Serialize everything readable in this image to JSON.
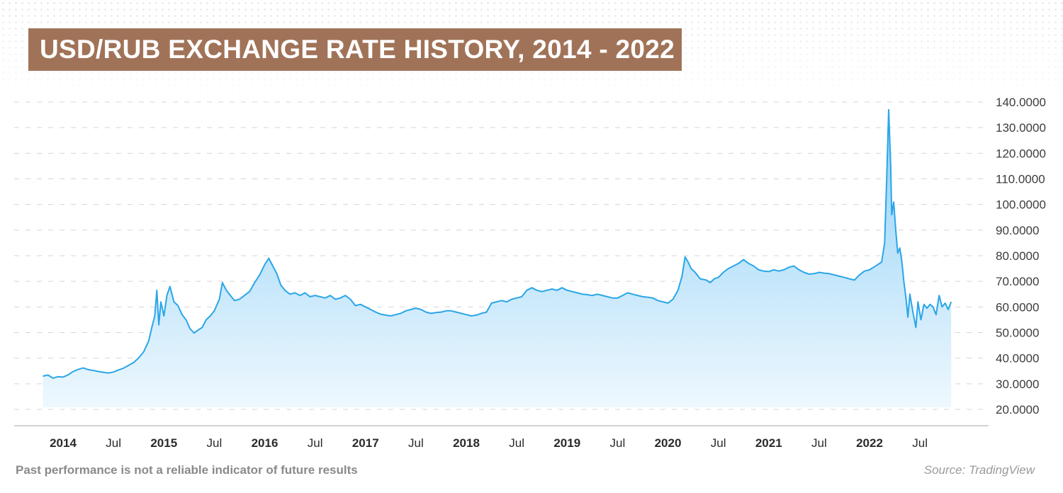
{
  "title": "USD/RUB EXCHANGE RATE HISTORY, 2014 - 2022",
  "footer": {
    "disclaimer": "Past performance is not a reliable indicator of future results",
    "source": "Source: TradingView"
  },
  "colors": {
    "line": "#2aa6e8",
    "fill_top": "#8fd0f6",
    "fill_bottom": "#eef8fe",
    "title_bg": "#a07358"
  },
  "chart_data": {
    "type": "area",
    "title": "USD/RUB EXCHANGE RATE HISTORY, 2014 - 2022",
    "ylim": [
      20,
      140
    ],
    "y_ticks": [
      "140.0000",
      "130.0000",
      "120.0000",
      "110.0000",
      "100.0000",
      "90.0000",
      "80.0000",
      "70.0000",
      "60.0000",
      "50.0000",
      "40.0000",
      "30.0000",
      "20.0000"
    ],
    "x_ticks": [
      {
        "label": "2014",
        "t": 2014.0,
        "bold": true
      },
      {
        "label": "Jul",
        "t": 2014.5,
        "bold": false
      },
      {
        "label": "2015",
        "t": 2015.0,
        "bold": true
      },
      {
        "label": "Jul",
        "t": 2015.5,
        "bold": false
      },
      {
        "label": "2016",
        "t": 2016.0,
        "bold": true
      },
      {
        "label": "Jul",
        "t": 2016.5,
        "bold": false
      },
      {
        "label": "2017",
        "t": 2017.0,
        "bold": true
      },
      {
        "label": "Jul",
        "t": 2017.5,
        "bold": false
      },
      {
        "label": "2018",
        "t": 2018.0,
        "bold": true
      },
      {
        "label": "Jul",
        "t": 2018.5,
        "bold": false
      },
      {
        "label": "2019",
        "t": 2019.0,
        "bold": true
      },
      {
        "label": "Jul",
        "t": 2019.5,
        "bold": false
      },
      {
        "label": "2020",
        "t": 2020.0,
        "bold": true
      },
      {
        "label": "Jul",
        "t": 2020.5,
        "bold": false
      },
      {
        "label": "2021",
        "t": 2021.0,
        "bold": true
      },
      {
        "label": "Jul",
        "t": 2021.5,
        "bold": false
      },
      {
        "label": "2022",
        "t": 2022.0,
        "bold": true
      },
      {
        "label": "Jul",
        "t": 2022.5,
        "bold": false
      }
    ],
    "grid": true,
    "series": [
      {
        "points": [
          [
            2013.8,
            33.0
          ],
          [
            2013.85,
            33.4
          ],
          [
            2013.9,
            32.2
          ],
          [
            2013.95,
            32.8
          ],
          [
            2014.0,
            32.6
          ],
          [
            2014.05,
            33.5
          ],
          [
            2014.1,
            34.8
          ],
          [
            2014.15,
            35.6
          ],
          [
            2014.2,
            36.2
          ],
          [
            2014.25,
            35.5
          ],
          [
            2014.3,
            35.2
          ],
          [
            2014.35,
            34.8
          ],
          [
            2014.4,
            34.5
          ],
          [
            2014.45,
            34.2
          ],
          [
            2014.5,
            34.6
          ],
          [
            2014.55,
            35.4
          ],
          [
            2014.6,
            36.1
          ],
          [
            2014.65,
            37.2
          ],
          [
            2014.7,
            38.3
          ],
          [
            2014.75,
            40.1
          ],
          [
            2014.8,
            42.5
          ],
          [
            2014.85,
            46.8
          ],
          [
            2014.88,
            52.0
          ],
          [
            2014.91,
            56.5
          ],
          [
            2014.93,
            66.5
          ],
          [
            2014.95,
            53.0
          ],
          [
            2014.97,
            62.0
          ],
          [
            2015.0,
            56.5
          ],
          [
            2015.03,
            64.5
          ],
          [
            2015.06,
            68.0
          ],
          [
            2015.1,
            62.0
          ],
          [
            2015.14,
            60.5
          ],
          [
            2015.18,
            57.0
          ],
          [
            2015.22,
            55.0
          ],
          [
            2015.26,
            51.5
          ],
          [
            2015.3,
            49.8
          ],
          [
            2015.34,
            51.0
          ],
          [
            2015.38,
            52.0
          ],
          [
            2015.42,
            55.0
          ],
          [
            2015.46,
            56.5
          ],
          [
            2015.5,
            58.5
          ],
          [
            2015.55,
            63.0
          ],
          [
            2015.58,
            69.5
          ],
          [
            2015.62,
            66.5
          ],
          [
            2015.66,
            64.5
          ],
          [
            2015.7,
            62.5
          ],
          [
            2015.75,
            63.0
          ],
          [
            2015.8,
            64.5
          ],
          [
            2015.85,
            66.0
          ],
          [
            2015.9,
            69.5
          ],
          [
            2015.95,
            72.5
          ],
          [
            2016.0,
            76.5
          ],
          [
            2016.04,
            79.0
          ],
          [
            2016.08,
            76.0
          ],
          [
            2016.12,
            73.0
          ],
          [
            2016.16,
            68.5
          ],
          [
            2016.2,
            66.5
          ],
          [
            2016.25,
            65.0
          ],
          [
            2016.3,
            65.5
          ],
          [
            2016.35,
            64.5
          ],
          [
            2016.4,
            65.5
          ],
          [
            2016.45,
            64.0
          ],
          [
            2016.5,
            64.5
          ],
          [
            2016.55,
            64.0
          ],
          [
            2016.6,
            63.5
          ],
          [
            2016.65,
            64.5
          ],
          [
            2016.7,
            63.0
          ],
          [
            2016.75,
            63.5
          ],
          [
            2016.8,
            64.5
          ],
          [
            2016.85,
            63.0
          ],
          [
            2016.9,
            60.5
          ],
          [
            2016.95,
            61.0
          ],
          [
            2017.0,
            60.0
          ],
          [
            2017.05,
            59.0
          ],
          [
            2017.1,
            58.0
          ],
          [
            2017.15,
            57.2
          ],
          [
            2017.2,
            56.8
          ],
          [
            2017.25,
            56.5
          ],
          [
            2017.3,
            57.0
          ],
          [
            2017.35,
            57.5
          ],
          [
            2017.4,
            58.5
          ],
          [
            2017.45,
            59.0
          ],
          [
            2017.5,
            59.5
          ],
          [
            2017.55,
            59.0
          ],
          [
            2017.6,
            58.0
          ],
          [
            2017.65,
            57.5
          ],
          [
            2017.7,
            57.8
          ],
          [
            2017.75,
            58.0
          ],
          [
            2017.8,
            58.5
          ],
          [
            2017.85,
            58.5
          ],
          [
            2017.9,
            58.0
          ],
          [
            2017.95,
            57.5
          ],
          [
            2018.0,
            57.0
          ],
          [
            2018.05,
            56.5
          ],
          [
            2018.1,
            56.8
          ],
          [
            2018.15,
            57.5
          ],
          [
            2018.2,
            58.0
          ],
          [
            2018.25,
            61.5
          ],
          [
            2018.3,
            62.0
          ],
          [
            2018.35,
            62.5
          ],
          [
            2018.4,
            62.0
          ],
          [
            2018.45,
            63.0
          ],
          [
            2018.5,
            63.5
          ],
          [
            2018.55,
            64.0
          ],
          [
            2018.6,
            66.5
          ],
          [
            2018.65,
            67.5
          ],
          [
            2018.7,
            66.5
          ],
          [
            2018.75,
            66.0
          ],
          [
            2018.8,
            66.5
          ],
          [
            2018.85,
            67.0
          ],
          [
            2018.9,
            66.5
          ],
          [
            2018.95,
            67.5
          ],
          [
            2019.0,
            66.5
          ],
          [
            2019.05,
            66.0
          ],
          [
            2019.1,
            65.5
          ],
          [
            2019.15,
            65.0
          ],
          [
            2019.2,
            64.8
          ],
          [
            2019.25,
            64.5
          ],
          [
            2019.3,
            65.0
          ],
          [
            2019.35,
            64.5
          ],
          [
            2019.4,
            64.0
          ],
          [
            2019.45,
            63.5
          ],
          [
            2019.5,
            63.5
          ],
          [
            2019.55,
            64.5
          ],
          [
            2019.6,
            65.5
          ],
          [
            2019.65,
            65.0
          ],
          [
            2019.7,
            64.5
          ],
          [
            2019.75,
            64.0
          ],
          [
            2019.8,
            63.8
          ],
          [
            2019.85,
            63.5
          ],
          [
            2019.9,
            62.5
          ],
          [
            2019.95,
            62.0
          ],
          [
            2020.0,
            61.5
          ],
          [
            2020.05,
            63.0
          ],
          [
            2020.1,
            66.5
          ],
          [
            2020.14,
            72.0
          ],
          [
            2020.17,
            79.5
          ],
          [
            2020.2,
            77.5
          ],
          [
            2020.23,
            75.0
          ],
          [
            2020.27,
            73.5
          ],
          [
            2020.32,
            71.0
          ],
          [
            2020.38,
            70.5
          ],
          [
            2020.42,
            69.5
          ],
          [
            2020.46,
            71.0
          ],
          [
            2020.5,
            71.5
          ],
          [
            2020.55,
            73.5
          ],
          [
            2020.6,
            75.0
          ],
          [
            2020.65,
            76.0
          ],
          [
            2020.7,
            77.0
          ],
          [
            2020.75,
            78.5
          ],
          [
            2020.8,
            77.0
          ],
          [
            2020.85,
            76.0
          ],
          [
            2020.9,
            74.5
          ],
          [
            2020.95,
            74.0
          ],
          [
            2021.0,
            73.8
          ],
          [
            2021.05,
            74.5
          ],
          [
            2021.1,
            74.0
          ],
          [
            2021.15,
            74.5
          ],
          [
            2021.2,
            75.5
          ],
          [
            2021.25,
            76.0
          ],
          [
            2021.3,
            74.5
          ],
          [
            2021.35,
            73.5
          ],
          [
            2021.4,
            72.8
          ],
          [
            2021.45,
            73.0
          ],
          [
            2021.5,
            73.5
          ],
          [
            2021.55,
            73.2
          ],
          [
            2021.6,
            73.0
          ],
          [
            2021.65,
            72.5
          ],
          [
            2021.7,
            72.0
          ],
          [
            2021.75,
            71.5
          ],
          [
            2021.8,
            71.0
          ],
          [
            2021.85,
            70.5
          ],
          [
            2021.9,
            72.5
          ],
          [
            2021.95,
            74.0
          ],
          [
            2022.0,
            74.5
          ],
          [
            2022.04,
            75.5
          ],
          [
            2022.08,
            76.5
          ],
          [
            2022.12,
            77.5
          ],
          [
            2022.15,
            85.0
          ],
          [
            2022.17,
            110.0
          ],
          [
            2022.19,
            137.0
          ],
          [
            2022.21,
            115.0
          ],
          [
            2022.22,
            96.0
          ],
          [
            2022.24,
            101.0
          ],
          [
            2022.26,
            90.0
          ],
          [
            2022.28,
            81.0
          ],
          [
            2022.3,
            83.0
          ],
          [
            2022.32,
            78.0
          ],
          [
            2022.34,
            70.0
          ],
          [
            2022.36,
            64.0
          ],
          [
            2022.38,
            56.0
          ],
          [
            2022.4,
            65.0
          ],
          [
            2022.43,
            58.0
          ],
          [
            2022.46,
            52.0
          ],
          [
            2022.48,
            62.0
          ],
          [
            2022.51,
            55.0
          ],
          [
            2022.54,
            61.0
          ],
          [
            2022.57,
            59.5
          ],
          [
            2022.6,
            61.0
          ],
          [
            2022.63,
            60.0
          ],
          [
            2022.66,
            57.0
          ],
          [
            2022.69,
            64.5
          ],
          [
            2022.72,
            60.0
          ],
          [
            2022.75,
            61.5
          ],
          [
            2022.78,
            59.0
          ],
          [
            2022.81,
            62.0
          ]
        ]
      }
    ]
  }
}
